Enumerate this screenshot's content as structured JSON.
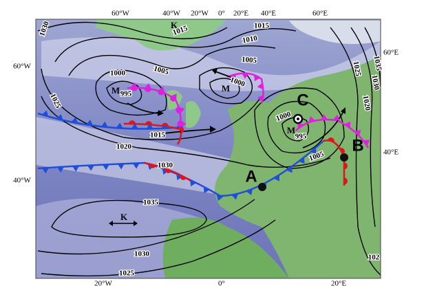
{
  "map": {
    "top_labels": [
      "60°W",
      "40°W",
      "20°W",
      "0°",
      "20°E",
      "40°E",
      "60°E"
    ],
    "left_labels": [
      "60°W",
      "40°W"
    ],
    "right_labels": [
      "60°E",
      "40°E"
    ],
    "bottom_labels": [
      "20°W",
      "0°",
      "20°E"
    ],
    "points": [
      "A",
      "B",
      "C"
    ],
    "pressure_centers": [
      "M",
      "M",
      "M",
      "K",
      "K"
    ],
    "isobar_labels": [
      "1030",
      "1015",
      "1015",
      "1010",
      "1005",
      "1005",
      "1000",
      "1000",
      "995",
      "1025",
      "1020",
      "1015",
      "1030",
      "1035",
      "1030",
      "1025",
      "1000",
      "995",
      "1005",
      "1025",
      "1020",
      "1030",
      "1035",
      "102"
    ]
  }
}
